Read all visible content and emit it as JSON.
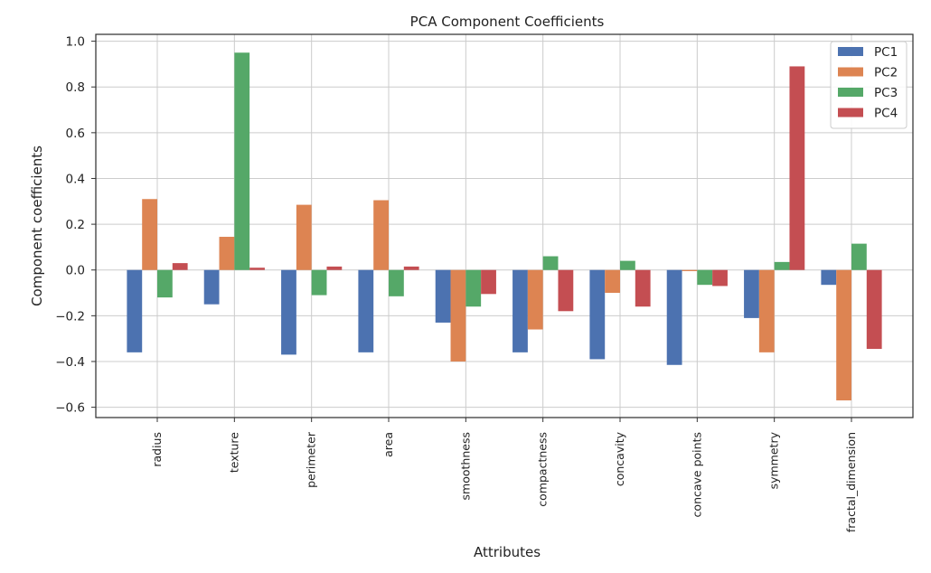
{
  "chart_data": {
    "type": "bar",
    "title": "PCA Component Coefficients",
    "xlabel": "Attributes",
    "ylabel": "Component coefficients",
    "categories": [
      "radius",
      "texture",
      "perimeter",
      "area",
      "smoothness",
      "compactness",
      "concavity",
      "concave points",
      "symmetry",
      "fractal_dimension"
    ],
    "series": [
      {
        "name": "PC1",
        "color": "#4c72b0",
        "values": [
          -0.36,
          -0.15,
          -0.37,
          -0.36,
          -0.23,
          -0.36,
          -0.39,
          -0.415,
          -0.21,
          -0.065
        ]
      },
      {
        "name": "PC2",
        "color": "#dd8452",
        "values": [
          0.31,
          0.145,
          0.285,
          0.305,
          -0.4,
          -0.26,
          -0.1,
          -0.005,
          -0.36,
          -0.57
        ]
      },
      {
        "name": "PC3",
        "color": "#55a868",
        "values": [
          -0.12,
          0.95,
          -0.11,
          -0.115,
          -0.16,
          0.06,
          0.04,
          -0.065,
          0.035,
          0.115
        ]
      },
      {
        "name": "PC4",
        "color": "#c44e52",
        "values": [
          0.03,
          0.01,
          0.015,
          0.015,
          -0.105,
          -0.18,
          -0.16,
          -0.07,
          0.89,
          -0.345
        ]
      }
    ],
    "yticks": [
      "1.0",
      "0.8",
      "0.6",
      "0.4",
      "0.2",
      "0.0",
      "−0.2",
      "−0.4",
      "−0.6"
    ],
    "ytick_values": [
      1.0,
      0.8,
      0.6,
      0.4,
      0.2,
      0.0,
      -0.2,
      -0.4,
      -0.6
    ],
    "ylim": [
      -0.645,
      1.03
    ],
    "grid": true,
    "legend_position": "top-right"
  }
}
